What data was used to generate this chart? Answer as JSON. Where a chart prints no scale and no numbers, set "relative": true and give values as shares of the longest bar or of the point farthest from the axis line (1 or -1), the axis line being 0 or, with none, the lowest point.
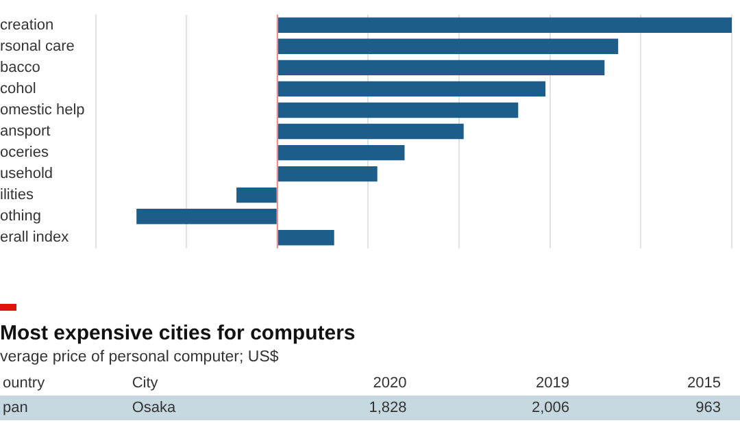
{
  "chart_data": [
    {
      "type": "bar",
      "orientation": "horizontal",
      "relative": true,
      "grid": "x",
      "ref_lines": [
        {
          "axis": "x",
          "value": 0,
          "color": "#e88888"
        }
      ],
      "legend": false,
      "color": "#1d5d8a",
      "categories": [
        "creation",
        "rsonal care",
        "bacco",
        "cohol",
        "omestic help",
        "ansport",
        "oceries",
        "usehold",
        "ilities",
        "othing",
        "erall index"
      ],
      "values": [
        1,
        0.75,
        0.72,
        0.59,
        0.53,
        0.41,
        0.28,
        0.22,
        -0.09,
        -0.31,
        0.125
      ]
    },
    {
      "type": "other",
      "title": "Most expensive cities for computers",
      "subtitle": "verage price of personal computer; US$",
      "categories": [
        "ountry",
        "City",
        "2020",
        "2019",
        "2015"
      ],
      "annotations": [
        "pan",
        "Osaka",
        "1,828",
        "2,006",
        "963"
      ]
    }
  ]
}
